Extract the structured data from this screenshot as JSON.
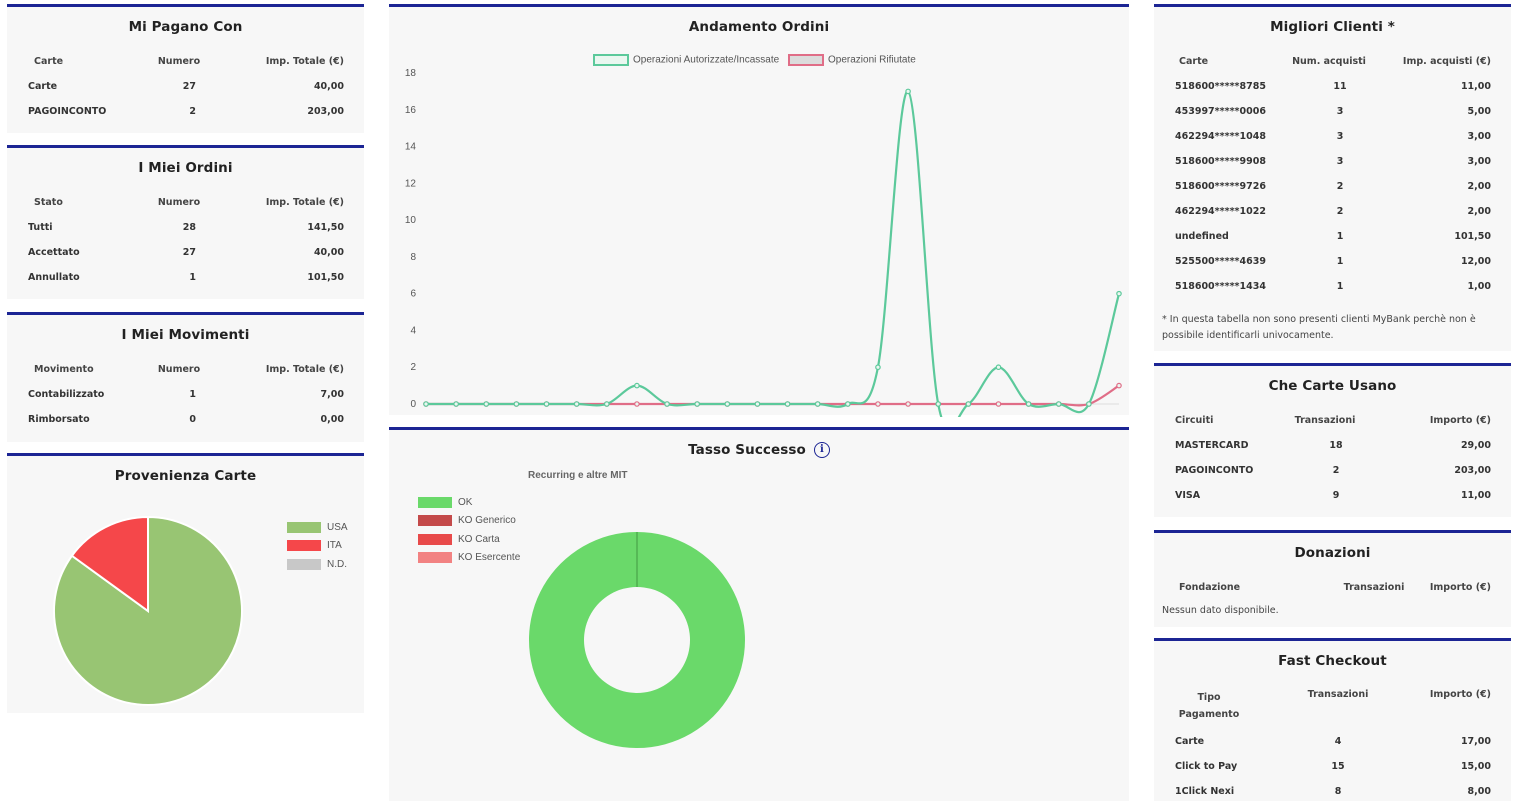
{
  "mi_pagano_con": {
    "title": "Mi Pagano Con",
    "headers": [
      "Carte",
      "Numero",
      "Imp. Totale (€)"
    ],
    "rows": [
      [
        "Carte",
        "27",
        "40,00"
      ],
      [
        "PAGOINCONTO",
        "2",
        "203,00"
      ]
    ]
  },
  "miei_ordini": {
    "title": "I Miei Ordini",
    "headers": [
      "Stato",
      "Numero",
      "Imp. Totale (€)"
    ],
    "rows": [
      [
        "Tutti",
        "28",
        "141,50"
      ],
      [
        "Accettato",
        "27",
        "40,00"
      ],
      [
        "Annullato",
        "1",
        "101,50"
      ]
    ]
  },
  "miei_movimenti": {
    "title": "I Miei Movimenti",
    "headers": [
      "Movimento",
      "Numero",
      "Imp. Totale (€)"
    ],
    "rows": [
      [
        "Contabilizzato",
        "1",
        "7,00"
      ],
      [
        "Rimborsato",
        "0",
        "0,00"
      ]
    ]
  },
  "provenienza_carte": {
    "title": "Provenienza Carte",
    "legend": [
      {
        "label": "USA",
        "color": "#98c573"
      },
      {
        "label": "ITA",
        "color": "#f5474a"
      },
      {
        "label": "N.D.",
        "color": "#c8c8c8"
      }
    ]
  },
  "andamento_ordini": {
    "title": "Andamento Ordini"
  },
  "tasso_successo": {
    "title": "Tasso Successo",
    "info_icon": "info-icon",
    "legend": [
      {
        "label": "OK",
        "color": "#6ad96a"
      },
      {
        "label": "KO Generico",
        "color": "#c44a4a"
      },
      {
        "label": "KO Carta",
        "color": "#e84a4a"
      },
      {
        "label": "KO Esercente",
        "color": "#f28282"
      }
    ]
  },
  "migliori_clienti": {
    "title": "Migliori Clienti *",
    "headers": [
      "Carte",
      "Num. acquisti",
      "Imp. acquisti (€)"
    ],
    "rows": [
      [
        "518600*****8785",
        "11",
        "11,00"
      ],
      [
        "453997*****0006",
        "3",
        "5,00"
      ],
      [
        "462294*****1048",
        "3",
        "3,00"
      ],
      [
        "518600*****9908",
        "3",
        "3,00"
      ],
      [
        "518600*****9726",
        "2",
        "2,00"
      ],
      [
        "462294*****1022",
        "2",
        "2,00"
      ],
      [
        "undefined",
        "1",
        "101,50"
      ],
      [
        "525500*****4639",
        "1",
        "12,00"
      ],
      [
        "518600*****1434",
        "1",
        "1,00"
      ]
    ],
    "note": "* In questa tabella non sono presenti clienti MyBank perchè non è possibile identificarli univocamente."
  },
  "che_carte_usano": {
    "title": "Che Carte Usano",
    "headers": [
      "Circuiti",
      "Transazioni",
      "Importo (€)"
    ],
    "rows": [
      [
        "MASTERCARD",
        "18",
        "29,00"
      ],
      [
        "PAGOINCONTO",
        "2",
        "203,00"
      ],
      [
        "VISA",
        "9",
        "11,00"
      ]
    ]
  },
  "donazioni": {
    "title": "Donazioni",
    "headers": [
      "Fondazione",
      "Transazioni",
      "Importo (€)"
    ],
    "empty_text": "Nessun dato disponibile."
  },
  "fast_checkout": {
    "title": "Fast Checkout",
    "headers": [
      "Tipo Pagamento",
      "Transazioni",
      "Importo (€)"
    ],
    "rows": [
      [
        "Carte",
        "4",
        "17,00"
      ],
      [
        "Click to Pay",
        "15",
        "15,00"
      ],
      [
        "1Click Nexi",
        "8",
        "8,00"
      ]
    ]
  },
  "chart_data": [
    {
      "type": "pie",
      "title": "Provenienza Carte",
      "categories": [
        "USA",
        "ITA",
        "N.D."
      ],
      "values": [
        85,
        15,
        0
      ],
      "colors": [
        "#98c573",
        "#f5474a",
        "#c8c8c8"
      ],
      "legend": "right"
    },
    {
      "type": "line",
      "title": "Andamento Ordini",
      "ylim": [
        0,
        18
      ],
      "yticks": [
        0,
        2,
        4,
        6,
        8,
        10,
        12,
        14,
        16,
        18
      ],
      "grid": false,
      "legend": "top",
      "series": [
        {
          "name": "Operazioni Autorizzate/Incassate",
          "color": "#5cc99b",
          "values": [
            0,
            0,
            0,
            0,
            0,
            0,
            0,
            1,
            0,
            0,
            0,
            0,
            0,
            0,
            0,
            2,
            17,
            0,
            0,
            2,
            0,
            0,
            0,
            6
          ]
        },
        {
          "name": "Operazioni Rifiutate",
          "color": "#e06d87",
          "values": [
            0,
            0,
            0,
            0,
            0,
            0,
            0,
            0,
            0,
            0,
            0,
            0,
            0,
            0,
            0,
            0,
            0,
            0,
            0,
            0,
            0,
            0,
            0,
            1
          ]
        }
      ]
    },
    {
      "type": "pie",
      "title": "Tasso Successo",
      "subtitle": "Recurring e altre MIT",
      "categories": [
        "OK",
        "KO Generico",
        "KO Carta",
        "KO Esercente"
      ],
      "values": [
        100,
        0,
        0,
        0
      ],
      "colors": [
        "#6ad96a",
        "#c44a4a",
        "#e84a4a",
        "#f28282"
      ],
      "legend": "top-left"
    }
  ]
}
